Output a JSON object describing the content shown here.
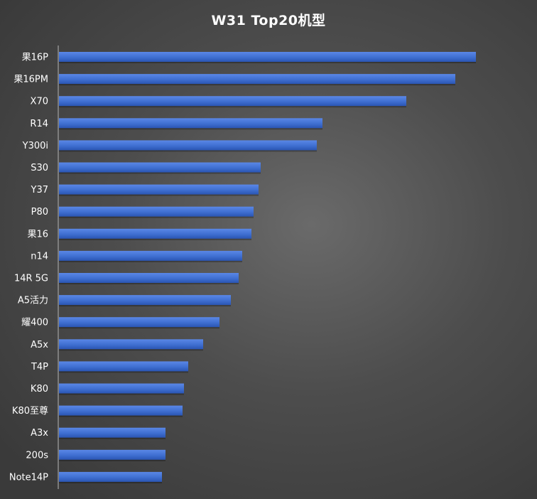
{
  "chart_data": {
    "type": "bar",
    "orientation": "horizontal",
    "title": "W31 Top20机型",
    "xlabel": "",
    "ylabel": "",
    "grid": false,
    "legend": "none",
    "bar_color": "#3f6fd1",
    "categories": [
      "果16P",
      "果16PM",
      "X70",
      "R14",
      "Y300i",
      "S30",
      "Y37",
      "P80",
      "果16",
      "n14",
      "14R 5G",
      "A5活力",
      "耀400",
      "A5x",
      "T4P",
      "K80",
      "K80至尊",
      "A3x",
      "200s",
      "Note14P"
    ],
    "values": [
      587,
      558,
      489,
      371,
      363,
      284,
      281,
      274,
      271,
      258,
      253,
      242,
      226,
      203,
      182,
      176,
      174,
      150,
      150,
      145
    ],
    "xlim": [
      0,
      600
    ]
  }
}
